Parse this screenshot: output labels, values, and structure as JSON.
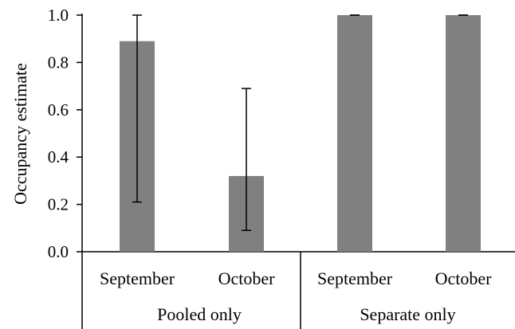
{
  "chart_data": {
    "type": "bar",
    "ylabel": "Occupancy estimate",
    "ylim": [
      0,
      1.0
    ],
    "yticks": [
      "0.0",
      "0.2",
      "0.4",
      "0.6",
      "0.8",
      "1.0"
    ],
    "grid": false,
    "bar_color": "#808080",
    "groups": [
      {
        "label": "Pooled only",
        "bars": [
          {
            "category": "September",
            "value": 0.89,
            "error_low": 0.21,
            "error_high": 1.0
          },
          {
            "category": "October",
            "value": 0.32,
            "error_low": 0.09,
            "error_high": 0.69
          }
        ]
      },
      {
        "label": "Separate only",
        "bars": [
          {
            "category": "September",
            "value": 1.0,
            "error_low": 1.0,
            "error_high": 1.0
          },
          {
            "category": "October",
            "value": 1.0,
            "error_low": 1.0,
            "error_high": 1.0
          }
        ]
      }
    ]
  }
}
